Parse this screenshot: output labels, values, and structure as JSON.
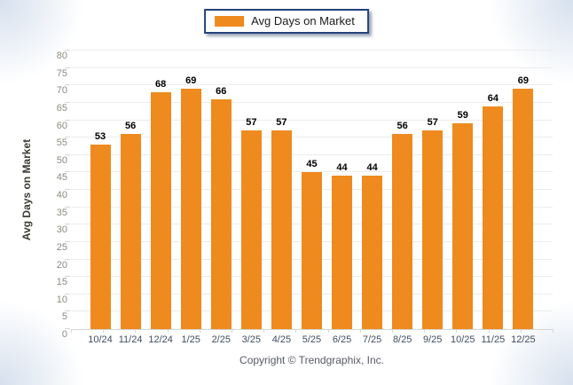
{
  "legend": {
    "label": "Avg Days on Market"
  },
  "footer": {
    "copyright": "Copyright © Trendgraphix, Inc."
  },
  "colors": {
    "bar": "#EE8A1E",
    "legend_border": "#24417A",
    "gridline": "#ECECEC",
    "axis_line": "#D6D6D6",
    "y_tick_label": "#8D8A80",
    "x_tick_label": "#3E4E60",
    "value_label": "#000000"
  },
  "chart_data": {
    "type": "bar",
    "title": "",
    "series_name": "Avg Days on Market",
    "categories": [
      "10/24",
      "11/24",
      "12/24",
      "1/25",
      "2/25",
      "3/25",
      "4/25",
      "5/25",
      "6/25",
      "7/25",
      "8/25",
      "9/25",
      "10/25",
      "11/25",
      "12/25"
    ],
    "values": [
      53,
      56,
      68,
      69,
      66,
      57,
      57,
      45,
      44,
      44,
      56,
      57,
      59,
      64,
      69
    ],
    "xlabel": "",
    "ylabel": "Avg Days on Market",
    "ylim": [
      0,
      80
    ],
    "ytick_step": 5,
    "grid": true,
    "legend_position": "top-center",
    "value_labels": true
  }
}
